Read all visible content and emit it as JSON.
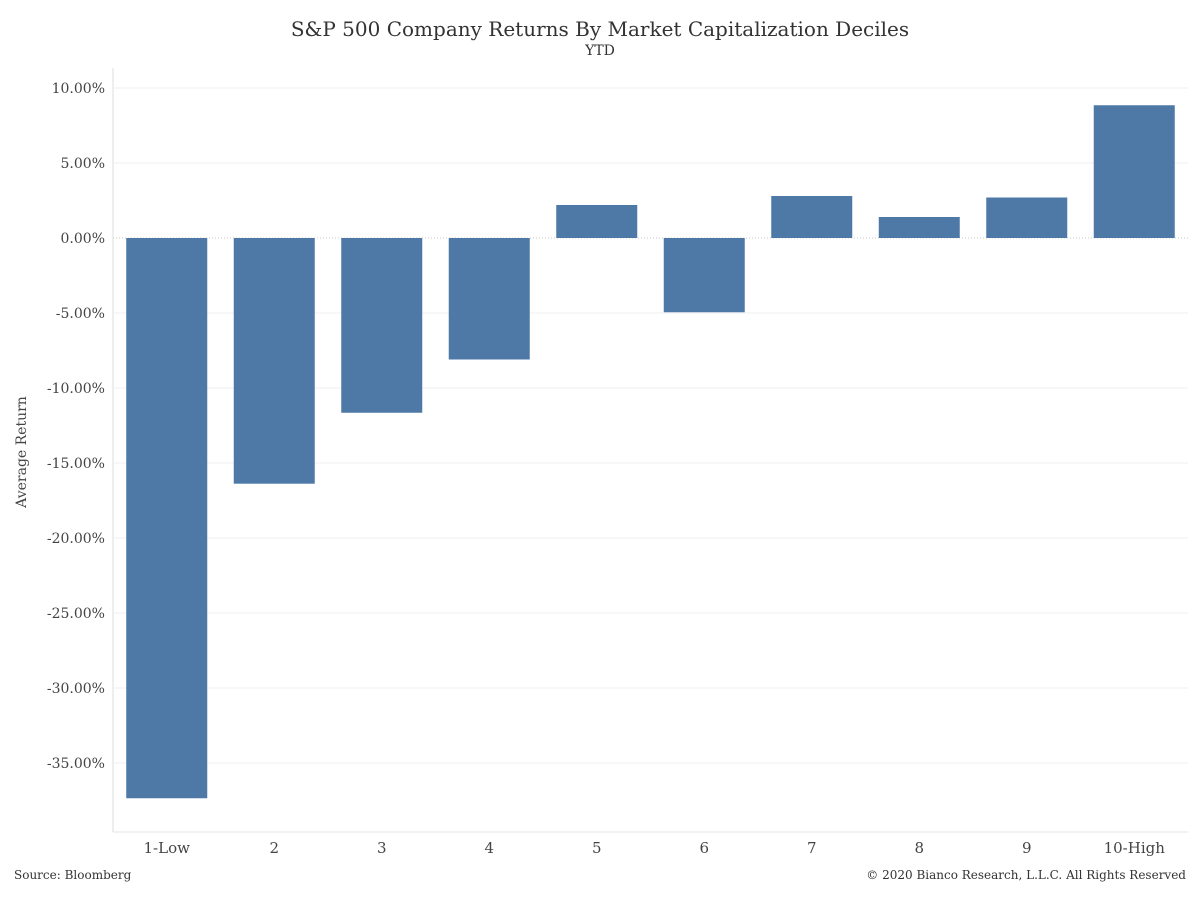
{
  "chart_data": {
    "type": "bar",
    "title": "S&P 500 Company Returns By Market Capitalization Deciles",
    "subtitle": "YTD",
    "xlabel": "",
    "ylabel": "Average Return",
    "categories": [
      "1-Low",
      "2",
      "3",
      "4",
      "5",
      "6",
      "7",
      "8",
      "9",
      "10-High"
    ],
    "values": [
      -37.35,
      -16.38,
      -11.65,
      -8.1,
      2.2,
      -4.95,
      2.8,
      1.4,
      2.7,
      8.85
    ],
    "ylim": [
      -40,
      11
    ],
    "yticks": [
      10,
      5,
      0,
      -5,
      -10,
      -15,
      -20,
      -25,
      -30,
      -35
    ],
    "ytick_labels": [
      "10.00%",
      "5.00%",
      "0.00%",
      "-5.00%",
      "-10.00%",
      "-15.00%",
      "-20.00%",
      "-25.00%",
      "-30.00%",
      "-35.00%"
    ],
    "grid": true,
    "legend": "none",
    "bar_color": "#4e79a7"
  },
  "footer": {
    "source": "Source: Bloomberg",
    "copyright": "© 2020 Bianco Research, L.L.C. All Rights Reserved"
  }
}
